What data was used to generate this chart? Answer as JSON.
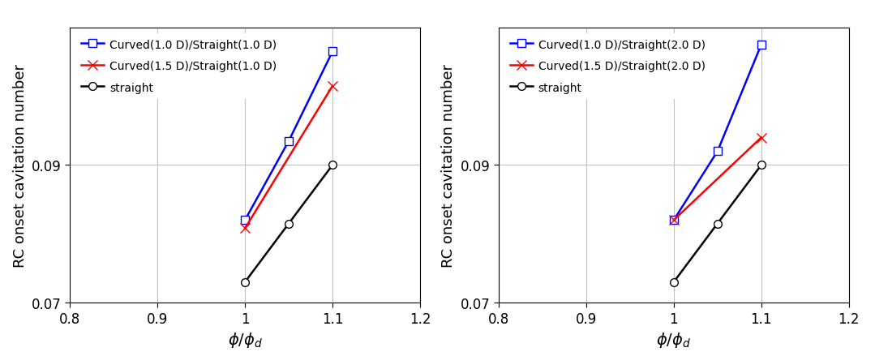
{
  "left": {
    "series": [
      {
        "label": "Curved(1.0 D)/Straight(1.0 D)",
        "x": [
          1.0,
          1.05,
          1.1
        ],
        "y": [
          0.082,
          0.0935,
          0.1065
        ],
        "color": "#0000ff",
        "marker": "s",
        "markerfacecolor": "white",
        "markersize": 7,
        "linewidth": 1.8
      },
      {
        "label": "Curved(1.5 D)/Straight(1.0 D)",
        "x": [
          1.0,
          1.1
        ],
        "y": [
          0.0808,
          0.1015
        ],
        "color": "#ff0000",
        "marker": "x",
        "markerfacecolor": "#ff0000",
        "markersize": 9,
        "linewidth": 1.8
      },
      {
        "label": "straight",
        "x": [
          1.0,
          1.05,
          1.1
        ],
        "y": [
          0.073,
          0.0815,
          0.09
        ],
        "color": "#000000",
        "marker": "o",
        "markerfacecolor": "white",
        "markersize": 7,
        "linewidth": 1.8
      }
    ],
    "xlim": [
      0.8,
      1.2
    ],
    "ylim": [
      0.07,
      0.11
    ],
    "yticks": [
      0.07,
      0.09
    ],
    "xticks": [
      0.8,
      0.9,
      1.0,
      1.1,
      1.2
    ]
  },
  "right": {
    "series": [
      {
        "label": "Curved(1.0 D)/Straight(2.0 D)",
        "x": [
          1.0,
          1.05,
          1.1
        ],
        "y": [
          0.082,
          0.092,
          0.1075
        ],
        "color": "#0000ff",
        "marker": "s",
        "markerfacecolor": "white",
        "markersize": 7,
        "linewidth": 1.8
      },
      {
        "label": "Curved(1.5 D)/Straight(2.0 D)",
        "x": [
          1.0,
          1.1
        ],
        "y": [
          0.082,
          0.094
        ],
        "color": "#ff0000",
        "marker": "x",
        "markerfacecolor": "#ff0000",
        "markersize": 9,
        "linewidth": 1.8
      },
      {
        "label": "straight",
        "x": [
          1.0,
          1.05,
          1.1
        ],
        "y": [
          0.073,
          0.0815,
          0.09
        ],
        "color": "#000000",
        "marker": "o",
        "markerfacecolor": "white",
        "markersize": 7,
        "linewidth": 1.8
      }
    ],
    "xlim": [
      0.8,
      1.2
    ],
    "ylim": [
      0.07,
      0.11
    ],
    "yticks": [
      0.07,
      0.09
    ],
    "xticks": [
      0.8,
      0.9,
      1.0,
      1.1,
      1.2
    ]
  },
  "ylabel": "RC onset cavitation number",
  "xlabel_latex": "$\\phi/\\phi_d$",
  "fontsize_label": 13,
  "fontsize_tick": 12,
  "fontsize_legend": 10,
  "background_color": "#ffffff",
  "grid_color": "#c0c0c0"
}
